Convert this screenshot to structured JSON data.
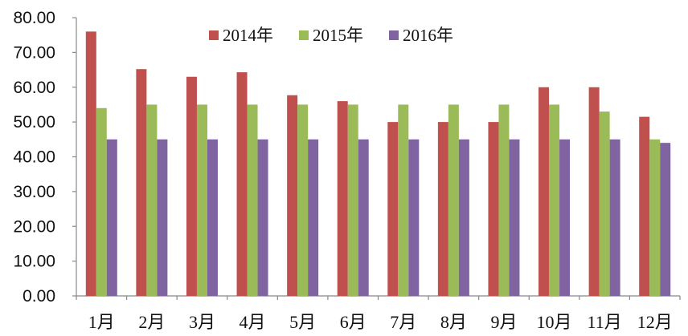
{
  "chart_data": {
    "type": "bar",
    "categories": [
      "1月",
      "2月",
      "3月",
      "4月",
      "5月",
      "6月",
      "7月",
      "8月",
      "9月",
      "10月",
      "11月",
      "12月"
    ],
    "series": [
      {
        "name": "2014年",
        "color": "#c0504d",
        "values": [
          76.0,
          65.2,
          63.0,
          64.3,
          57.7,
          56.0,
          50.0,
          50.0,
          50.0,
          60.0,
          60.0,
          51.5
        ]
      },
      {
        "name": "2015年",
        "color": "#9bbb59",
        "values": [
          54.0,
          55.0,
          55.0,
          55.0,
          55.0,
          55.0,
          55.0,
          55.0,
          55.0,
          55.0,
          53.0,
          45.0
        ]
      },
      {
        "name": "2016年",
        "color": "#8064a2",
        "values": [
          45.0,
          45.0,
          45.0,
          45.0,
          45.0,
          45.0,
          45.0,
          45.0,
          45.0,
          45.0,
          45.0,
          44.0
        ]
      }
    ],
    "ylim": [
      0,
      80
    ],
    "yticks": [
      "0.00",
      "10.00",
      "20.00",
      "30.00",
      "40.00",
      "50.00",
      "60.00",
      "70.00",
      "80.00"
    ],
    "grid": false,
    "legend_position": "top-center",
    "title": "",
    "xlabel": "",
    "ylabel": ""
  }
}
